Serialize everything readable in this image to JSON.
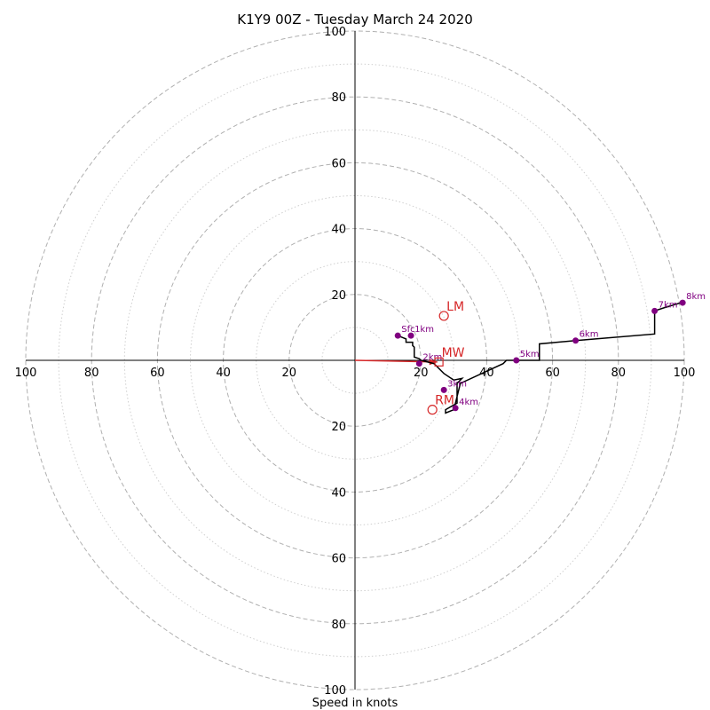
{
  "chart_data": {
    "type": "scatter",
    "subtype": "hodograph",
    "title": "K1Y9 00Z - Tuesday March 24 2020",
    "xlabel": "Speed in knots",
    "ylabel": "",
    "xlim": [
      -100,
      100
    ],
    "ylim": [
      -100,
      100
    ],
    "axis_ticks": {
      "x_left": [
        "100",
        "80",
        "60",
        "40",
        "20"
      ],
      "x_right": [
        "20",
        "40",
        "60",
        "80",
        "100"
      ],
      "y_top": [
        "100",
        "80",
        "60",
        "40",
        "20"
      ],
      "y_bottom": [
        "20",
        "40",
        "60",
        "80",
        "100"
      ]
    },
    "x_tick_values": [
      -100,
      -80,
      -60,
      -40,
      -20,
      20,
      40,
      60,
      80,
      100
    ],
    "y_tick_values": [
      100,
      80,
      60,
      40,
      20,
      -20,
      -40,
      -60,
      -80,
      -100
    ],
    "rings_dashed": [
      20,
      40,
      60,
      80,
      100
    ],
    "rings_dotted": [
      10,
      30,
      50,
      70,
      90
    ],
    "grid": true,
    "colors": {
      "trace": "#000000",
      "points": "#800080",
      "motion": "#d62728",
      "ring": "#b0b0b0"
    },
    "hodograph_trace": [
      [
        13,
        7.5
      ],
      [
        15.5,
        6.5
      ],
      [
        15.5,
        5.5
      ],
      [
        17.5,
        5.5
      ],
      [
        17.5,
        4.5
      ],
      [
        18,
        4
      ],
      [
        18,
        1
      ],
      [
        19.5,
        0.5
      ],
      [
        20,
        0
      ],
      [
        24,
        -1
      ],
      [
        27,
        -4
      ],
      [
        30,
        -6
      ],
      [
        32.5,
        -5.5
      ],
      [
        31,
        -7
      ],
      [
        31,
        -13
      ],
      [
        27.5,
        -15
      ],
      [
        27.5,
        -16
      ],
      [
        30,
        -15
      ],
      [
        32,
        -7
      ],
      [
        45,
        -1
      ],
      [
        46,
        0
      ],
      [
        56,
        0
      ],
      [
        56,
        5
      ],
      [
        67,
        6
      ],
      [
        91,
        8
      ],
      [
        91,
        15
      ],
      [
        94,
        16
      ],
      [
        99,
        17.5
      ]
    ],
    "height_points": [
      {
        "label": "Sfc",
        "x": 13,
        "y": 7.5
      },
      {
        "label": "1km",
        "x": 17,
        "y": 7.5
      },
      {
        "label": "2km",
        "x": 19.5,
        "y": -1
      },
      {
        "label": "3km",
        "x": 27,
        "y": -9
      },
      {
        "label": "4km",
        "x": 30.5,
        "y": -14.5
      },
      {
        "label": "5km",
        "x": 49,
        "y": 0
      },
      {
        "label": "6km",
        "x": 67,
        "y": 6
      },
      {
        "label": "7km",
        "x": 91,
        "y": 15
      },
      {
        "label": "8km",
        "x": 99.5,
        "y": 17.5
      }
    ],
    "storm_motion": [
      {
        "label": "LM",
        "x": 27,
        "y": 13.5,
        "marker": "circle"
      },
      {
        "label": "RM",
        "x": 23.5,
        "y": -15,
        "marker": "circle"
      },
      {
        "label": "MW",
        "x": 25.5,
        "y": -0.5,
        "marker": "square"
      }
    ],
    "motion_vector": {
      "from": [
        0,
        0
      ],
      "to": [
        25,
        -0.5
      ]
    }
  }
}
